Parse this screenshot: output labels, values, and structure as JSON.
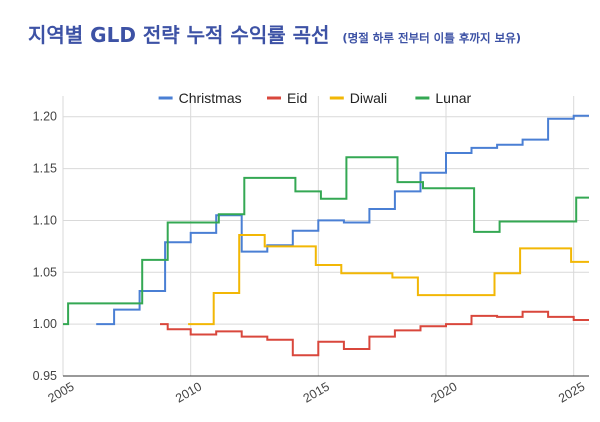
{
  "chart_data": {
    "type": "line",
    "step": true,
    "title": "지역별 GLD 전략 누적 수익률 곡선",
    "subtitle": "(명절 하루 전부터 이틀 후까지 보유)",
    "xlabel": "",
    "ylabel": "",
    "xlim": [
      2005.0,
      2025.6
    ],
    "ylim": [
      0.95,
      1.22
    ],
    "x_ticks": [
      2005,
      2010,
      2015,
      2020,
      2025
    ],
    "y_ticks": [
      0.95,
      1.0,
      1.05,
      1.1,
      1.15,
      1.2
    ],
    "y_tick_labels": [
      "0.95",
      "1.00",
      "1.05",
      "1.10",
      "1.15",
      "1.20"
    ],
    "grid": true,
    "legend_position": "top",
    "series": [
      {
        "name": "Christmas",
        "color": "#4a7fd4",
        "x": [
          2006.3,
          2007.0,
          2008.0,
          2009.0,
          2010.0,
          2011.0,
          2012.0,
          2013.0,
          2014.0,
          2015.0,
          2016.0,
          2017.0,
          2018.0,
          2019.0,
          2020.0,
          2021.0,
          2022.0,
          2023.0,
          2024.0,
          2025.0,
          2025.6
        ],
        "y": [
          1.0,
          1.014,
          1.032,
          1.079,
          1.088,
          1.105,
          1.07,
          1.076,
          1.09,
          1.1,
          1.098,
          1.111,
          1.128,
          1.146,
          1.165,
          1.17,
          1.173,
          1.178,
          1.198,
          1.201,
          1.201
        ]
      },
      {
        "name": "Eid",
        "color": "#d9473c",
        "x": [
          2008.8,
          2009.1,
          2010.0,
          2011.0,
          2012.0,
          2013.0,
          2014.0,
          2015.0,
          2016.0,
          2017.0,
          2018.0,
          2019.0,
          2020.0,
          2021.0,
          2022.0,
          2023.0,
          2024.0,
          2025.0,
          2025.6
        ],
        "y": [
          1.0,
          0.995,
          0.99,
          0.993,
          0.988,
          0.985,
          0.97,
          0.983,
          0.976,
          0.988,
          0.994,
          0.998,
          1.0,
          1.008,
          1.007,
          1.012,
          1.007,
          1.004,
          1.004
        ]
      },
      {
        "name": "Diwali",
        "color": "#f2b705",
        "x": [
          2009.9,
          2010.9,
          2011.9,
          2012.9,
          2014.9,
          2015.9,
          2017.9,
          2018.9,
          2021.9,
          2022.9,
          2024.9,
          2025.6
        ],
        "y": [
          1.0,
          1.03,
          1.086,
          1.075,
          1.057,
          1.049,
          1.045,
          1.028,
          1.049,
          1.073,
          1.06,
          1.06
        ]
      },
      {
        "name": "Lunar",
        "color": "#34a853",
        "x": [
          2005.0,
          2005.2,
          2008.1,
          2009.1,
          2011.1,
          2012.1,
          2014.1,
          2015.1,
          2016.1,
          2018.1,
          2019.1,
          2021.1,
          2022.1,
          2025.1,
          2025.6
        ],
        "y": [
          1.0,
          1.02,
          1.062,
          1.098,
          1.106,
          1.141,
          1.128,
          1.121,
          1.161,
          1.137,
          1.131,
          1.089,
          1.099,
          1.122,
          1.122
        ]
      }
    ]
  }
}
